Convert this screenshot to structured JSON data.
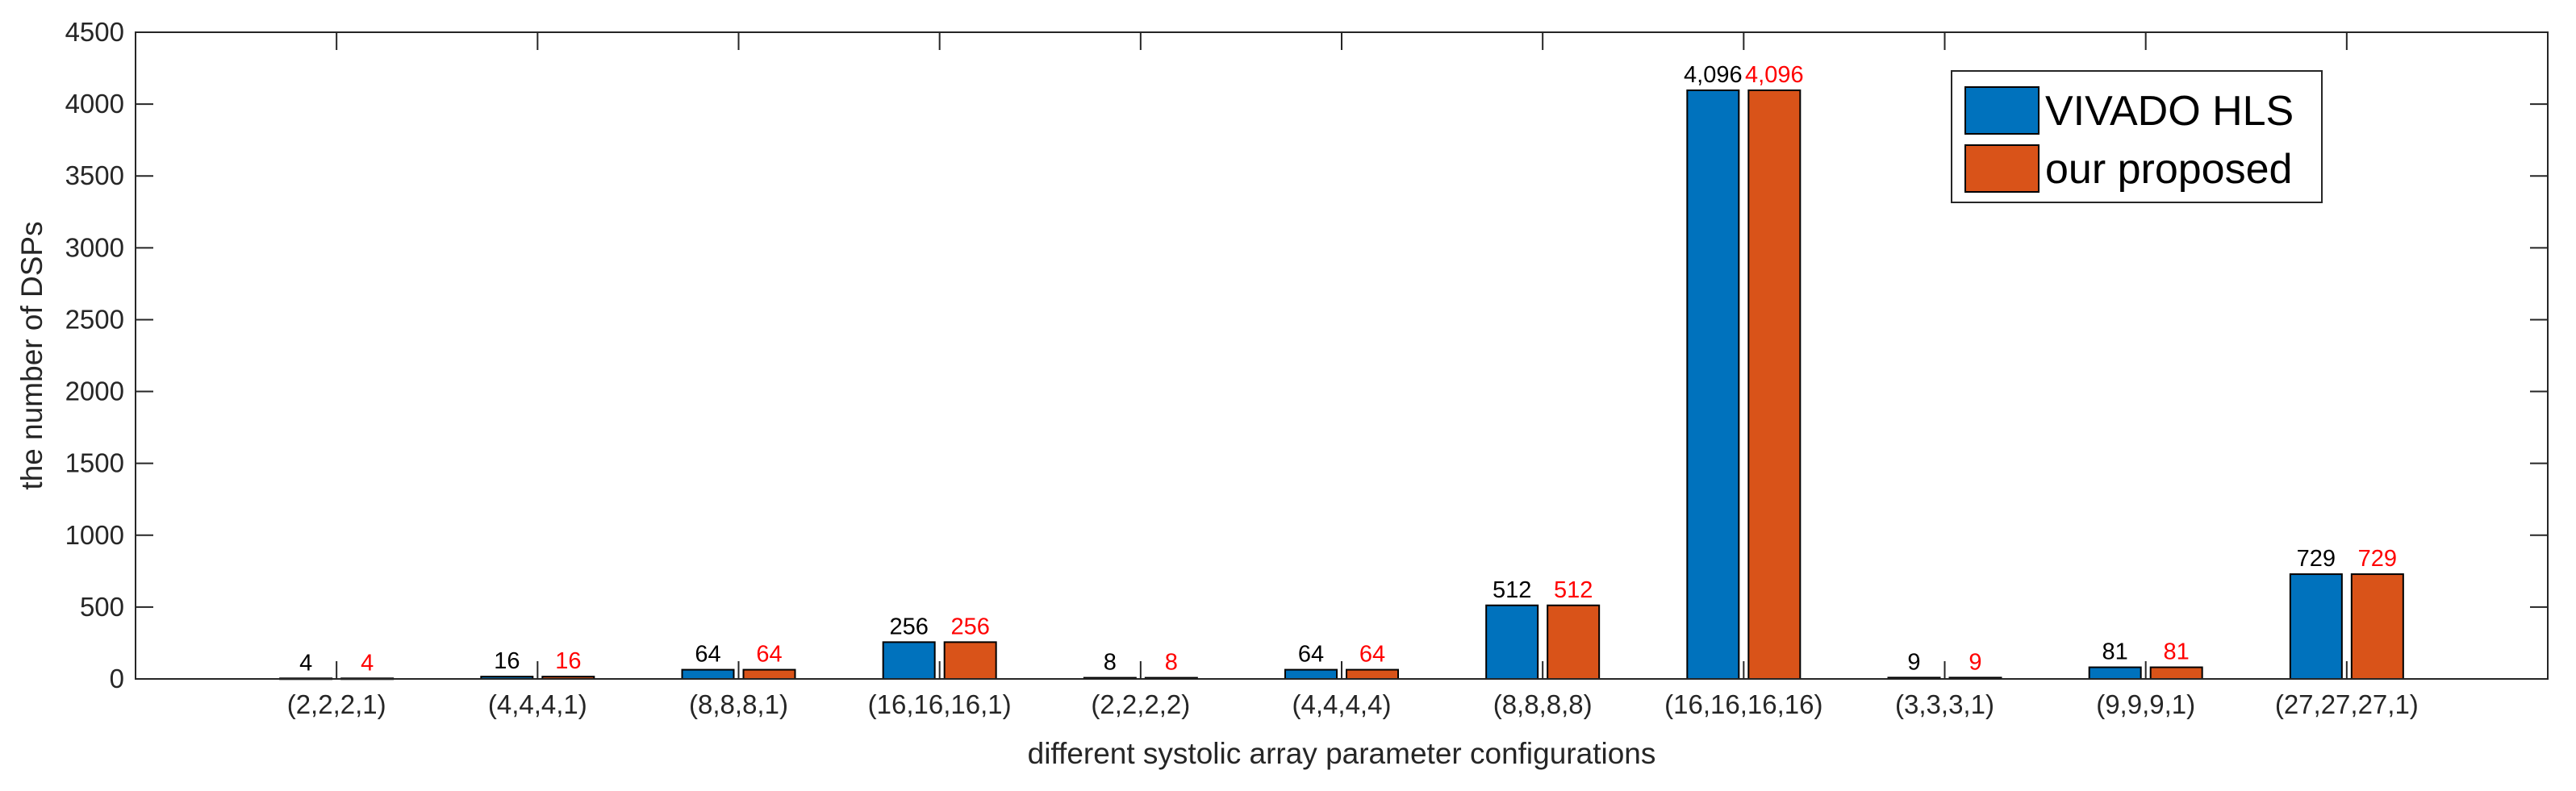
{
  "chart_data": {
    "type": "bar",
    "title": "",
    "xlabel": "different systolic array parameter configurations",
    "ylabel": "the number of DSPs",
    "ylim": [
      0,
      4500
    ],
    "yticks": [
      0,
      500,
      1000,
      1500,
      2000,
      2500,
      3000,
      3500,
      4000,
      4500
    ],
    "ytick_labels": [
      "0",
      "500",
      "1000",
      "1500",
      "2000",
      "2500",
      "3000",
      "3500",
      "4000",
      "4500"
    ],
    "categories": [
      "(2,2,2,1)",
      "(4,4,4,1)",
      "(8,8,8,1)",
      "(16,16,16,1)",
      "(2,2,2,2)",
      "(4,4,4,4)",
      "(8,8,8,8)",
      "(16,16,16,16)",
      "(3,3,3,1)",
      "(9,9,9,1)",
      "(27,27,27,1)"
    ],
    "series": [
      {
        "name": "VIVADO HLS",
        "color": "#0072BD",
        "label_color": "#000000",
        "values": [
          4,
          16,
          64,
          256,
          8,
          64,
          512,
          4096,
          9,
          81,
          729
        ],
        "labels": [
          "4",
          "16",
          "64",
          "256",
          "8",
          "64",
          "512",
          "4,096",
          "9",
          "81",
          "729"
        ]
      },
      {
        "name": "our proposed",
        "color": "#D95319",
        "label_color": "#FF0000",
        "values": [
          4,
          16,
          64,
          256,
          8,
          64,
          512,
          4096,
          9,
          81,
          729
        ],
        "labels": [
          "4",
          "16",
          "64",
          "256",
          "8",
          "64",
          "512",
          "4,096",
          "9",
          "81",
          "729"
        ]
      }
    ],
    "legend_position": "top-right",
    "grid": false
  }
}
